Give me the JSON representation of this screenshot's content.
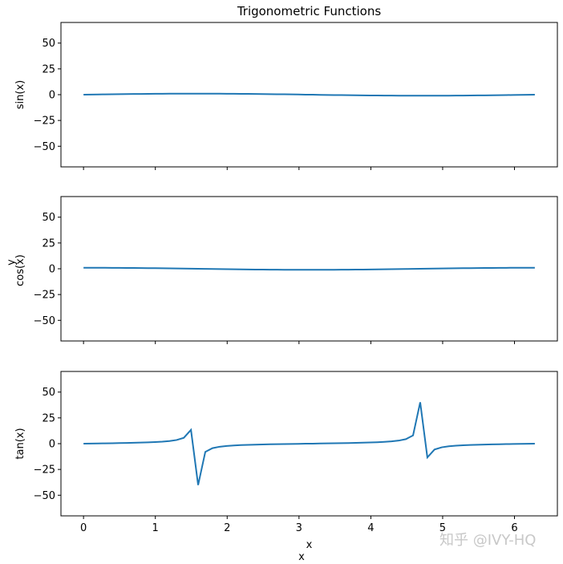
{
  "chart_data": {
    "type": "line",
    "title": "Trigonometric Functions",
    "shared_xlabel": "x",
    "shared_ylabel": "y",
    "line_color": "#1f77b4",
    "xlim": [
      -0.3142,
      6.5973
    ],
    "xticks": [
      "0",
      "1",
      "2",
      "3",
      "4",
      "5",
      "6"
    ],
    "yticks": [
      "50",
      "25",
      "0",
      "−25",
      "−50"
    ],
    "subplots": [
      {
        "ylabel": "sin(x)",
        "func": "sin",
        "ylim": [
          -70,
          70
        ],
        "xlabel": ""
      },
      {
        "ylabel": "cos(x)",
        "func": "cos",
        "ylim": [
          -70,
          70
        ],
        "xlabel": ""
      },
      {
        "ylabel": "tan(x)",
        "func": "tan",
        "ylim": [
          -70,
          70
        ],
        "xlabel": "x"
      }
    ],
    "x": {
      "start": 0,
      "end": 6.283185307179586,
      "num_points": 64
    },
    "grid": false,
    "watermark": "知乎 @IVY-HQ"
  }
}
